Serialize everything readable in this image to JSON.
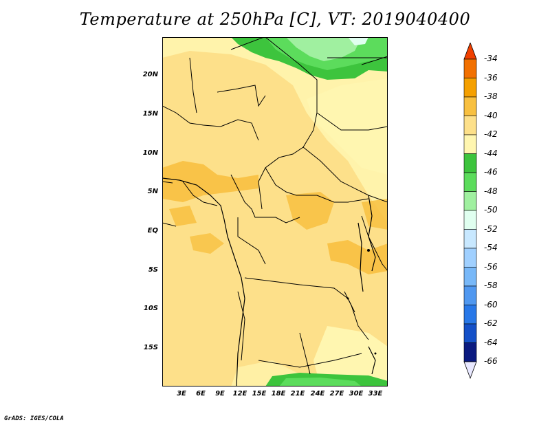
{
  "title": "Temperature at 250hPa [C], VT: 2019040400",
  "footer": "GrADS: IGES/COLA",
  "map": {
    "lon_range": [
      0,
      36
    ],
    "lat_range": [
      -20,
      25
    ],
    "y_ticks": [
      "20N",
      "15N",
      "10N",
      "5N",
      "EQ",
      "5S",
      "10S",
      "15S"
    ],
    "x_ticks": [
      "3E",
      "6E",
      "9E",
      "12E",
      "15E",
      "18E",
      "21E",
      "24E",
      "27E",
      "30E",
      "33E"
    ],
    "background_color": "#fde08a"
  },
  "colorbar": {
    "labels": [
      "-34",
      "-36",
      "-38",
      "-40",
      "-42",
      "-44",
      "-46",
      "-48",
      "-50",
      "-52",
      "-54",
      "-56",
      "-58",
      "-60",
      "-62",
      "-64",
      "-66"
    ],
    "colors": [
      "#f04000",
      "#f27000",
      "#f5a000",
      "#f8c040",
      "#fde08a",
      "#fff6b0",
      "#3dc43d",
      "#5cdc5c",
      "#a0f0a0",
      "#e0fff0",
      "#c8e8ff",
      "#a0d0ff",
      "#78b8f8",
      "#5098f0",
      "#2878e8",
      "#1450c8",
      "#0a1a80",
      "#e8e8ff"
    ]
  }
}
